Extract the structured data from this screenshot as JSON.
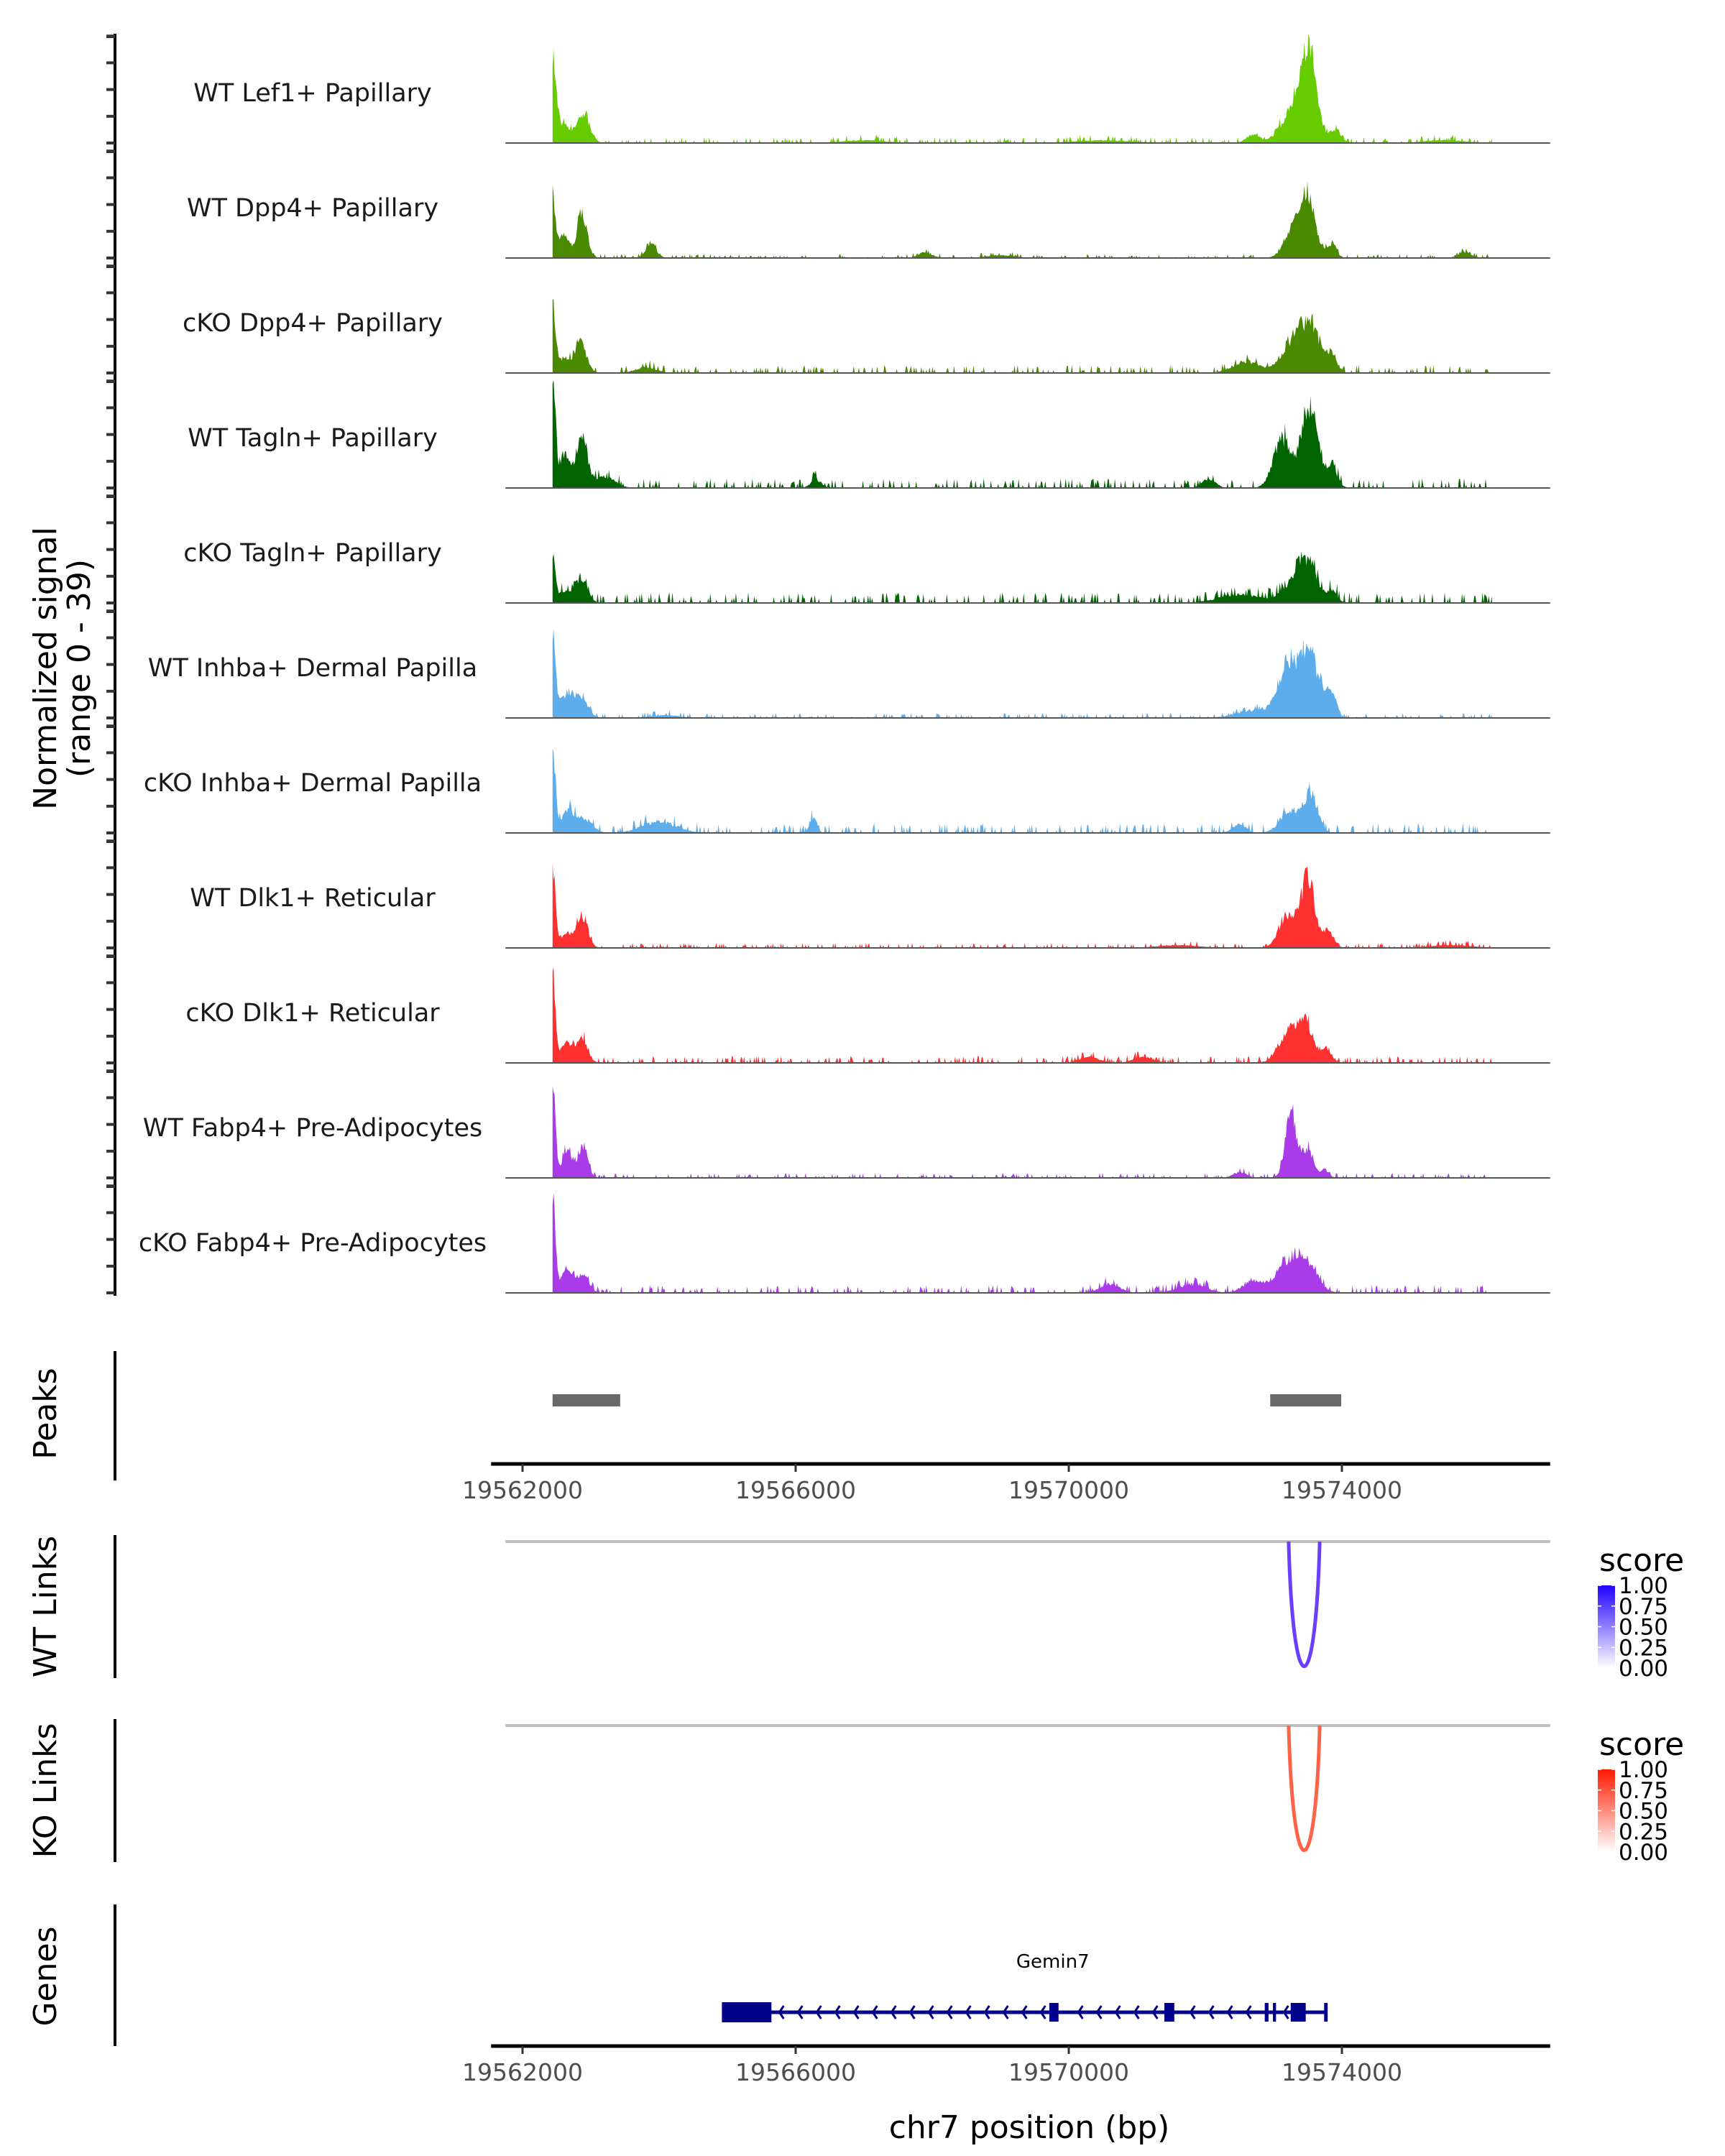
{
  "chart_data": {
    "type": "area",
    "title": "",
    "xlabel": "chr7 position (bp)",
    "ylabel": "Normalized signal",
    "ylabel_sub": "(range 0 - 39)",
    "ylim": [
      0,
      39
    ],
    "xlim": [
      19561750,
      19577050
    ],
    "x_ticks": [
      19562000,
      19566000,
      19570000,
      19574000
    ],
    "x_tick_labels": [
      "19562000",
      "19566000",
      "19570000",
      "19574000"
    ],
    "tracks": [
      {
        "name": "WT Lef1+ Papillary",
        "color": "#66CC00",
        "peaks": [
          [
            19562440,
            30,
            50
          ],
          [
            19562600,
            6,
            120
          ],
          [
            19562900,
            10,
            90
          ],
          [
            19573300,
            12,
            180
          ],
          [
            19573520,
            30,
            110
          ],
          [
            19573900,
            5,
            80
          ],
          [
            19572700,
            3,
            100
          ],
          [
            19567000,
            1,
            300
          ],
          [
            19570500,
            1,
            400
          ],
          [
            19575500,
            1,
            300
          ]
        ],
        "noise": 0.6
      },
      {
        "name": "WT Dpp4+ Papillary",
        "color": "#4A8A00",
        "peaks": [
          [
            19562440,
            23,
            40
          ],
          [
            19562600,
            8,
            80
          ],
          [
            19562870,
            16,
            70
          ],
          [
            19563880,
            5,
            80
          ],
          [
            19573300,
            9,
            140
          ],
          [
            19573500,
            20,
            110
          ],
          [
            19573850,
            5,
            70
          ],
          [
            19567900,
            2,
            100
          ],
          [
            19569000,
            1,
            200
          ],
          [
            19575800,
            2,
            100
          ]
        ],
        "noise": 0.4
      },
      {
        "name": "cKO Dpp4+ Papillary",
        "color": "#4A8A00",
        "peaks": [
          [
            19562440,
            22,
            40
          ],
          [
            19562600,
            5,
            90
          ],
          [
            19562850,
            10,
            90
          ],
          [
            19573300,
            10,
            180
          ],
          [
            19573550,
            14,
            140
          ],
          [
            19573850,
            6,
            80
          ],
          [
            19572600,
            4,
            200
          ],
          [
            19563800,
            2,
            150
          ]
        ],
        "noise": 0.8
      },
      {
        "name": "WT Tagln+ Papillary",
        "color": "#006400",
        "peaks": [
          [
            19562440,
            38,
            40
          ],
          [
            19562620,
            12,
            80
          ],
          [
            19562870,
            17,
            80
          ],
          [
            19563200,
            4,
            150
          ],
          [
            19573130,
            18,
            130
          ],
          [
            19573530,
            28,
            120
          ],
          [
            19573860,
            7,
            80
          ],
          [
            19566300,
            3,
            80
          ],
          [
            19572050,
            3,
            100
          ]
        ],
        "noise": 1.0
      },
      {
        "name": "cKO Tagln+ Papillary",
        "color": "#006400",
        "peaks": [
          [
            19562440,
            16,
            40
          ],
          [
            19562600,
            4,
            90
          ],
          [
            19562860,
            9,
            90
          ],
          [
            19573300,
            6,
            180
          ],
          [
            19573500,
            13,
            130
          ],
          [
            19573850,
            4,
            80
          ],
          [
            19572500,
            3,
            300
          ]
        ],
        "noise": 1.1
      },
      {
        "name": "WT Inhba+ Dermal Papilla",
        "color": "#5DADEC",
        "peaks": [
          [
            19562440,
            31,
            40
          ],
          [
            19562660,
            9,
            110
          ],
          [
            19562880,
            6,
            90
          ],
          [
            19573200,
            17,
            130
          ],
          [
            19573520,
            23,
            150
          ],
          [
            19573850,
            8,
            70
          ],
          [
            19572800,
            3,
            300
          ],
          [
            19564100,
            1,
            200
          ]
        ],
        "noise": 0.5
      },
      {
        "name": "cKO Inhba+ Dermal Papilla",
        "color": "#5DADEC",
        "peaks": [
          [
            19562440,
            30,
            40
          ],
          [
            19562650,
            7,
            100
          ],
          [
            19562900,
            5,
            120
          ],
          [
            19566260,
            6,
            50
          ],
          [
            19573250,
            8,
            150
          ],
          [
            19573550,
            13,
            100
          ],
          [
            19572500,
            3,
            100
          ],
          [
            19564000,
            4,
            250
          ]
        ],
        "noise": 1.0
      },
      {
        "name": "WT Dlk1+ Reticular",
        "color": "#FF3030",
        "peaks": [
          [
            19562440,
            28,
            40
          ],
          [
            19562650,
            5,
            100
          ],
          [
            19562880,
            11,
            80
          ],
          [
            19573200,
            12,
            120
          ],
          [
            19573500,
            25,
            100
          ],
          [
            19573800,
            6,
            80
          ],
          [
            19571600,
            1,
            300
          ],
          [
            19575600,
            1,
            300
          ]
        ],
        "noise": 0.5
      },
      {
        "name": "cKO Dlk1+ Reticular",
        "color": "#FF3030",
        "peaks": [
          [
            19562440,
            28,
            40
          ],
          [
            19562650,
            7,
            100
          ],
          [
            19562880,
            8,
            80
          ],
          [
            19573230,
            11,
            150
          ],
          [
            19573480,
            12,
            110
          ],
          [
            19573780,
            5,
            70
          ],
          [
            19570300,
            2,
            150
          ],
          [
            19571100,
            2,
            150
          ]
        ],
        "noise": 0.7
      },
      {
        "name": "WT Fabp4+ Pre-Adipocytes",
        "color": "#A93CE8",
        "peaks": [
          [
            19562440,
            34,
            40
          ],
          [
            19562650,
            11,
            70
          ],
          [
            19562880,
            11,
            70
          ],
          [
            19573250,
            23,
            80
          ],
          [
            19573500,
            11,
            80
          ],
          [
            19573750,
            3,
            60
          ],
          [
            19572500,
            2,
            100
          ]
        ],
        "noise": 0.5
      },
      {
        "name": "cKO Fabp4+ Pre-Adipocytes",
        "color": "#A93CE8",
        "peaks": [
          [
            19562440,
            32,
            40
          ],
          [
            19562650,
            8,
            90
          ],
          [
            19562880,
            6,
            90
          ],
          [
            19573200,
            10,
            180
          ],
          [
            19573500,
            9,
            150
          ],
          [
            19572700,
            4,
            150
          ],
          [
            19570600,
            3,
            150
          ],
          [
            19571800,
            3,
            200
          ]
        ],
        "noise": 0.8
      }
    ],
    "peaks_track": {
      "label": "Peaks",
      "color": "#696969",
      "regions": [
        [
          19562440,
          19563430
        ],
        [
          19572950,
          19573990
        ]
      ]
    },
    "links": [
      {
        "label": "WT Links",
        "start": 19573220,
        "end": 19573675,
        "score": 0.75,
        "color": "#6A3DFF",
        "legend": {
          "title": "score",
          "ticks": [
            "1.00",
            "0.75",
            "0.50",
            "0.25",
            "0.00"
          ],
          "high": "#2200FF",
          "low": "#FFFFFF"
        }
      },
      {
        "label": "KO Links",
        "start": 19573220,
        "end": 19573675,
        "score": 0.65,
        "color": "#FF6347",
        "legend": {
          "title": "score",
          "ticks": [
            "1.00",
            "0.75",
            "0.50",
            "0.25",
            "0.00"
          ],
          "high": "#FF1A00",
          "low": "#FFFFFF"
        }
      }
    ],
    "genes": {
      "label": "Genes",
      "color": "#00008B",
      "items": [
        {
          "name": "Gemin7",
          "strand": "-",
          "start": 19564920,
          "end": 19573770,
          "exons": [
            [
              19564920,
              19565645
            ],
            [
              19569715,
              19569850
            ],
            [
              19571400,
              19571545
            ],
            [
              19572870,
              19572925
            ],
            [
              19572990,
              19573035
            ],
            [
              19573250,
              19573470
            ],
            [
              19573740,
              19573770
            ]
          ]
        }
      ]
    }
  }
}
